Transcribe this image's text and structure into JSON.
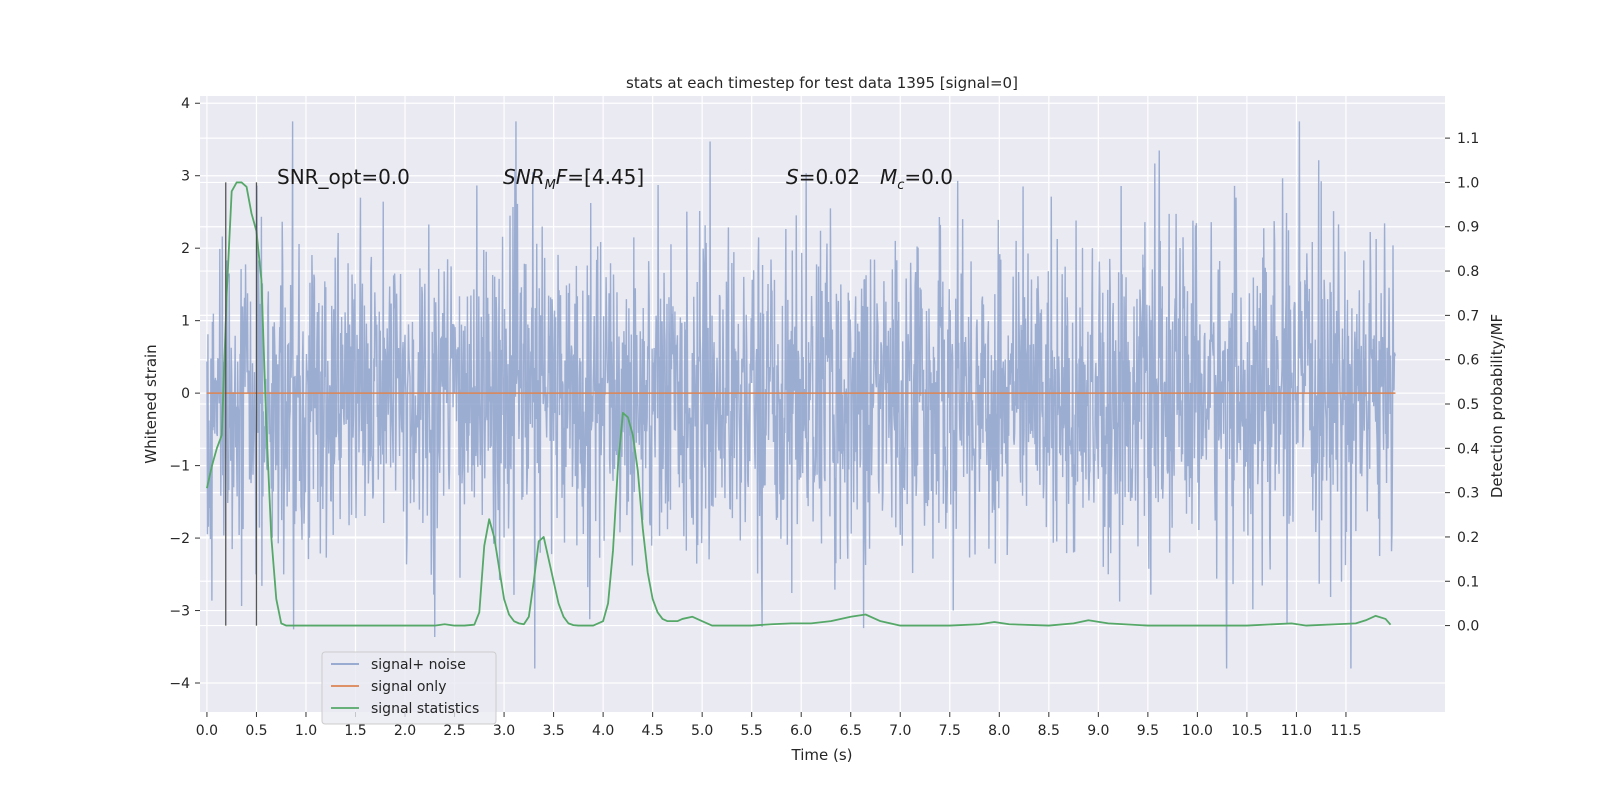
{
  "chart_data": {
    "type": "line",
    "title": "stats at each timestep for test data 1395 [signal=0]",
    "xlabel": "Time (s)",
    "ylabel": "Whitened strain",
    "y2label": "Detection probability/MF",
    "xlim": [
      -0.07,
      12.5
    ],
    "ylim": [
      -4.4,
      4.1
    ],
    "y2lim": [
      -0.195,
      1.195
    ],
    "x_ticks": [
      0.0,
      0.5,
      1.0,
      1.5,
      2.0,
      2.5,
      3.0,
      3.5,
      4.0,
      4.5,
      5.0,
      5.5,
      6.0,
      6.5,
      7.0,
      7.5,
      8.0,
      8.5,
      9.0,
      9.5,
      10.0,
      10.5,
      11.0,
      11.5
    ],
    "x_tick_labels": [
      "0.0",
      "0.5",
      "1.0",
      "1.5",
      "2.0",
      "2.5",
      "3.0",
      "3.5",
      "4.0",
      "4.5",
      "5.0",
      "5.5",
      "6.0",
      "6.5",
      "7.0",
      "7.5",
      "8.0",
      "8.5",
      "9.0",
      "9.5",
      "10.0",
      "10.5",
      "11.0",
      "11.5"
    ],
    "y_ticks": [
      -4,
      -3,
      -2,
      -1,
      0,
      1,
      2,
      3,
      4
    ],
    "y_tick_labels": [
      "−4",
      "−3",
      "−2",
      "−1",
      "0",
      "1",
      "2",
      "3",
      "4"
    ],
    "y2_ticks": [
      0.0,
      0.1,
      0.2,
      0.3,
      0.4,
      0.5,
      0.6,
      0.7,
      0.8,
      0.9,
      1.0,
      1.1
    ],
    "y2_tick_labels": [
      "0.0",
      "0.1",
      "0.2",
      "0.3",
      "0.4",
      "0.5",
      "0.6",
      "0.7",
      "0.8",
      "0.9",
      "1.0",
      "1.1"
    ],
    "grid": true,
    "legend_position": "lower-left",
    "annotations": {
      "snr_opt": "SNR_opt=0.0",
      "snr_mf": "=[4.45]",
      "snr_mf_symbol": "SNR",
      "snr_mf_sub": "M",
      "snr_mf_f": "F",
      "s_symbol": "S",
      "s_value": "=0.02",
      "mc_symbol": "M",
      "mc_sub": "c",
      "mc_value": "=0.0"
    },
    "vlines_x": [
      0.19,
      0.5
    ],
    "series": [
      {
        "name": "signal+ noise",
        "color": "#8ea2cc",
        "axis": "left",
        "x_start": 0.0,
        "x_end": 12.0,
        "amplitude": 1.05,
        "peak_range": [
          -3.8,
          3.75
        ]
      },
      {
        "name": "signal only",
        "color": "#dd8452",
        "axis": "left",
        "x": [
          0.0,
          12.0
        ],
        "y": [
          0.0,
          0.0
        ]
      },
      {
        "name": "signal statistics",
        "color": "#55a868",
        "axis": "right",
        "x": [
          0.0,
          0.05,
          0.1,
          0.15,
          0.2,
          0.25,
          0.3,
          0.35,
          0.4,
          0.45,
          0.5,
          0.55,
          0.6,
          0.65,
          0.7,
          0.75,
          0.8,
          1.0,
          1.5,
          2.0,
          2.3,
          2.4,
          2.5,
          2.6,
          2.7,
          2.75,
          2.8,
          2.85,
          2.9,
          2.95,
          3.0,
          3.05,
          3.1,
          3.15,
          3.2,
          3.25,
          3.3,
          3.35,
          3.4,
          3.45,
          3.5,
          3.55,
          3.6,
          3.65,
          3.7,
          3.75,
          3.8,
          3.9,
          4.0,
          4.05,
          4.1,
          4.15,
          4.2,
          4.25,
          4.3,
          4.35,
          4.4,
          4.45,
          4.5,
          4.55,
          4.6,
          4.65,
          4.7,
          4.75,
          4.8,
          4.9,
          5.0,
          5.1,
          5.2,
          5.5,
          5.7,
          5.9,
          6.1,
          6.3,
          6.5,
          6.65,
          6.8,
          7.0,
          7.5,
          7.8,
          7.95,
          8.1,
          8.5,
          8.75,
          8.9,
          9.1,
          9.5,
          10.0,
          10.5,
          10.95,
          11.1,
          11.4,
          11.6,
          11.7,
          11.8,
          11.9,
          11.95
        ],
        "y": [
          0.31,
          0.36,
          0.4,
          0.43,
          0.75,
          0.98,
          1.0,
          1.0,
          0.99,
          0.93,
          0.89,
          0.78,
          0.45,
          0.2,
          0.06,
          0.005,
          0.0,
          0.0,
          0.0,
          0.0,
          0.0,
          0.003,
          0.0,
          0.0,
          0.002,
          0.03,
          0.18,
          0.24,
          0.2,
          0.13,
          0.06,
          0.025,
          0.01,
          0.005,
          0.003,
          0.02,
          0.1,
          0.19,
          0.2,
          0.15,
          0.1,
          0.05,
          0.02,
          0.005,
          0.001,
          0.0,
          0.0,
          0.0,
          0.01,
          0.05,
          0.17,
          0.36,
          0.48,
          0.47,
          0.43,
          0.35,
          0.22,
          0.12,
          0.06,
          0.03,
          0.015,
          0.01,
          0.01,
          0.01,
          0.015,
          0.02,
          0.01,
          0.0,
          0.0,
          0.0,
          0.003,
          0.005,
          0.005,
          0.01,
          0.02,
          0.025,
          0.01,
          0.0,
          0.0,
          0.003,
          0.008,
          0.003,
          0.0,
          0.005,
          0.012,
          0.005,
          0.0,
          0.0,
          0.0,
          0.005,
          0.0,
          0.003,
          0.005,
          0.012,
          0.022,
          0.015,
          0.002
        ]
      }
    ]
  }
}
